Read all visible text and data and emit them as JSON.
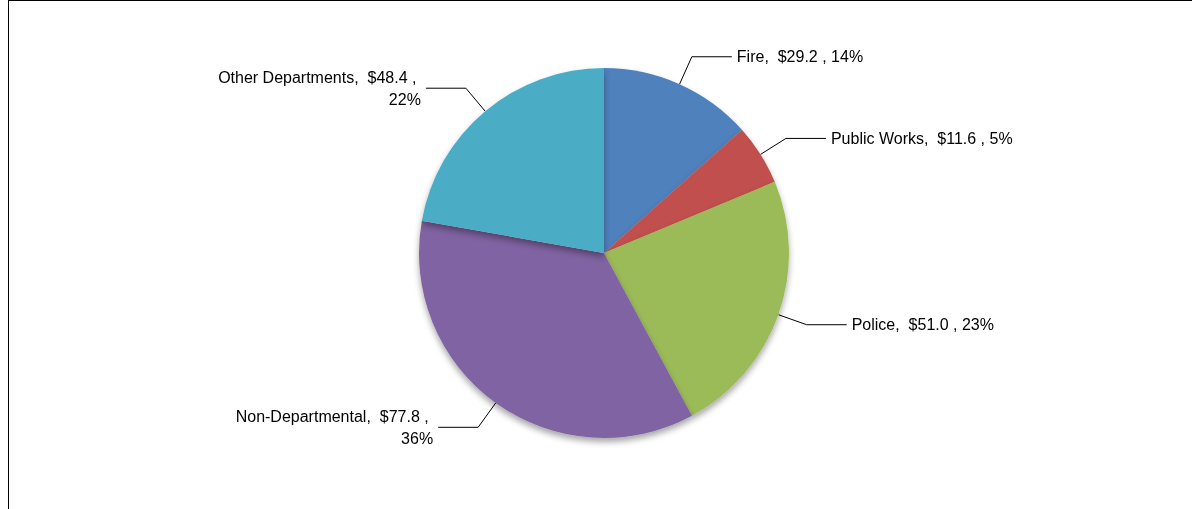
{
  "chart_data": {
    "type": "pie",
    "categories": [
      "Fire",
      "Public Works",
      "Police",
      "Non-Departmental",
      "Other Departments"
    ],
    "values": [
      29.2,
      11.6,
      51.0,
      77.8,
      48.4
    ],
    "value_labels": [
      "$29.2 , 14%",
      "$11.6 , 5%",
      "$51.0 , 23%",
      "$77.8 , 36%",
      "$48.4 , 22%"
    ],
    "colors": [
      "#4f81bd",
      "#c0504d",
      "#9bbb59",
      "#8064a2",
      "#4bacc6"
    ],
    "legend": false
  }
}
